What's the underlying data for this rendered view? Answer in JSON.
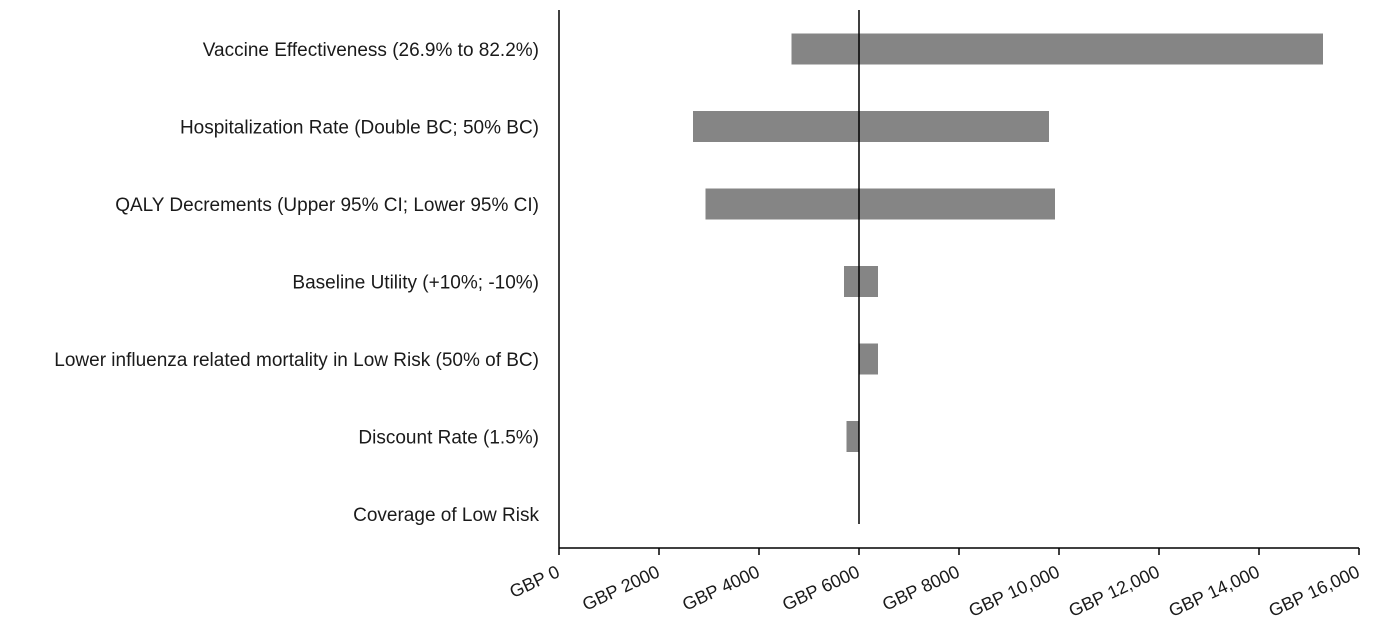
{
  "chart_data": {
    "type": "bar",
    "subtype": "tornado",
    "title": "",
    "xlabel": "",
    "ylabel": "",
    "xlim": [
      0,
      16000
    ],
    "baseline": 6000,
    "bar_color": "#858585",
    "axis_color": "#000000",
    "grid": false,
    "legend": "none",
    "x_ticks": [
      {
        "value": 0,
        "label": "GBP 0"
      },
      {
        "value": 2000,
        "label": "GBP 2000"
      },
      {
        "value": 4000,
        "label": "GBP 4000"
      },
      {
        "value": 6000,
        "label": "GBP 6000"
      },
      {
        "value": 8000,
        "label": "GBP 8000"
      },
      {
        "value": 10000,
        "label": "GBP 10,000"
      },
      {
        "value": 12000,
        "label": "GBP 12,000"
      },
      {
        "value": 14000,
        "label": "GBP 14,000"
      },
      {
        "value": 16000,
        "label": "GBP 16,000"
      }
    ],
    "categories": [
      "Vaccine Effectiveness (26.9% to 82.2%)",
      "Hospitalization Rate (Double BC; 50% BC)",
      "QALY Decrements (Upper 95% CI; Lower 95% CI)",
      "Baseline Utility (+10%; -10%)",
      "Lower influenza related mortality in Low Risk (50% of BC)",
      "Discount Rate (1.5%)",
      "Coverage of Low Risk"
    ],
    "ranges": [
      {
        "low": 4650,
        "high": 15280
      },
      {
        "low": 2680,
        "high": 9800
      },
      {
        "low": 2930,
        "high": 9920
      },
      {
        "low": 5700,
        "high": 6380
      },
      {
        "low": 6000,
        "high": 6380
      },
      {
        "low": 5750,
        "high": 6000
      },
      {
        "low": 6000,
        "high": 6000
      }
    ]
  }
}
